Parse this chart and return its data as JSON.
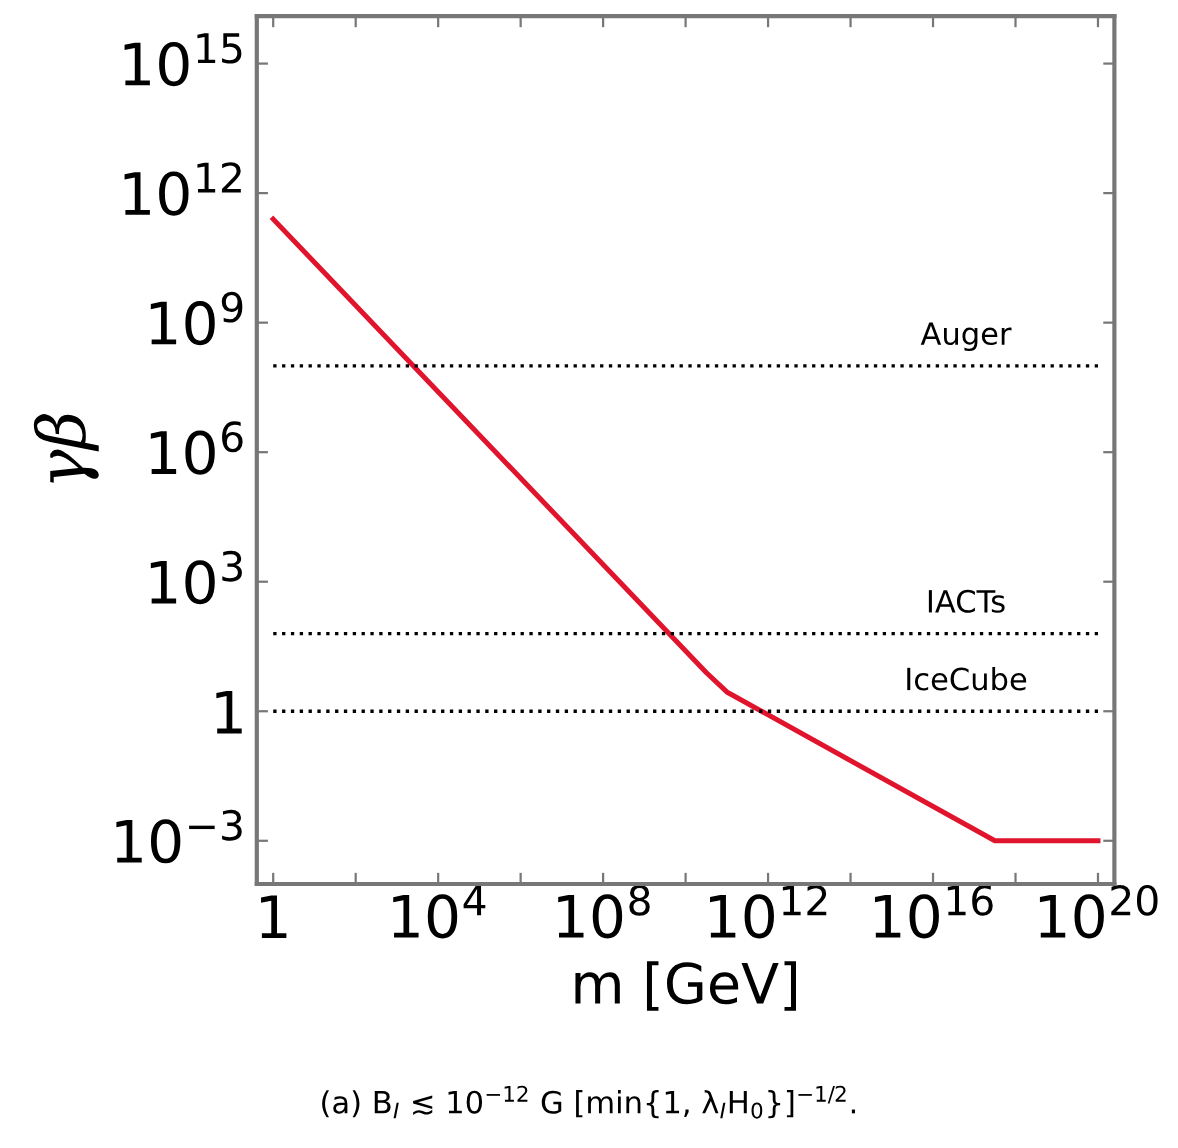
{
  "chart_data": {
    "type": "line",
    "xlabel": "m [GeV]",
    "ylabel": "γβ",
    "log": "xy",
    "x": [
      1,
      31600000000.0,
      100000000000.0,
      3.16e+17,
      1e+20
    ],
    "series": [
      {
        "color": "#e0142c",
        "values": [
          250000000000.0,
          7.9,
          2.8,
          0.001,
          0.001
        ]
      }
    ],
    "xlim": [
      0.4,
      2.5e+20
    ],
    "ylim": [
      0.0001,
      1.26e+16
    ],
    "xticks": [
      {
        "value": 1,
        "label": "1"
      },
      {
        "value": 100,
        "label": null
      },
      {
        "value": 10000,
        "label": "10$^{4}$"
      },
      {
        "value": 1000000.0,
        "label": null
      },
      {
        "value": 100000000.0,
        "label": "10$^{8}$"
      },
      {
        "value": 10000000000.0,
        "label": null
      },
      {
        "value": 1000000000000.0,
        "label": "10$^{12}$"
      },
      {
        "value": 100000000000000.0,
        "label": null
      },
      {
        "value": 1e+16,
        "label": "10$^{16}$"
      },
      {
        "value": 1e+18,
        "label": null
      },
      {
        "value": 1e+20,
        "label": "10$^{20}$"
      }
    ],
    "yticks": [
      {
        "value": 0.001,
        "label": "10$^{−3}$"
      },
      {
        "value": 1,
        "label": "1"
      },
      {
        "value": 1000,
        "label": "10$^{3}$"
      },
      {
        "value": 1000000.0,
        "label": "10$^{6}$"
      },
      {
        "value": 1000000000.0,
        "label": "10$^{9}$"
      },
      {
        "value": 1000000000000.0,
        "label": "10$^{12}$"
      },
      {
        "value": 1000000000000000.0,
        "label": "10$^{15}$"
      }
    ],
    "ref_lines": [
      {
        "axis": "y",
        "value": 100000000.0,
        "label": "Auger",
        "color": "#000000",
        "line_style": "dotted"
      },
      {
        "axis": "y",
        "value": 63,
        "label": "IACTs",
        "color": "#000000",
        "line_style": "dotted"
      },
      {
        "axis": "y",
        "value": 1,
        "label": "IceCube",
        "color": "#000000",
        "line_style": "dotted"
      }
    ],
    "annotations": [
      "(a) B$_{I}$ ≲ 10$^{−12}$ G [min{1, λ$_{I}$H$_{0}$}]$^{−1/2}$."
    ],
    "grid": false,
    "legend": false,
    "marker": "none",
    "line_style": "solid"
  }
}
